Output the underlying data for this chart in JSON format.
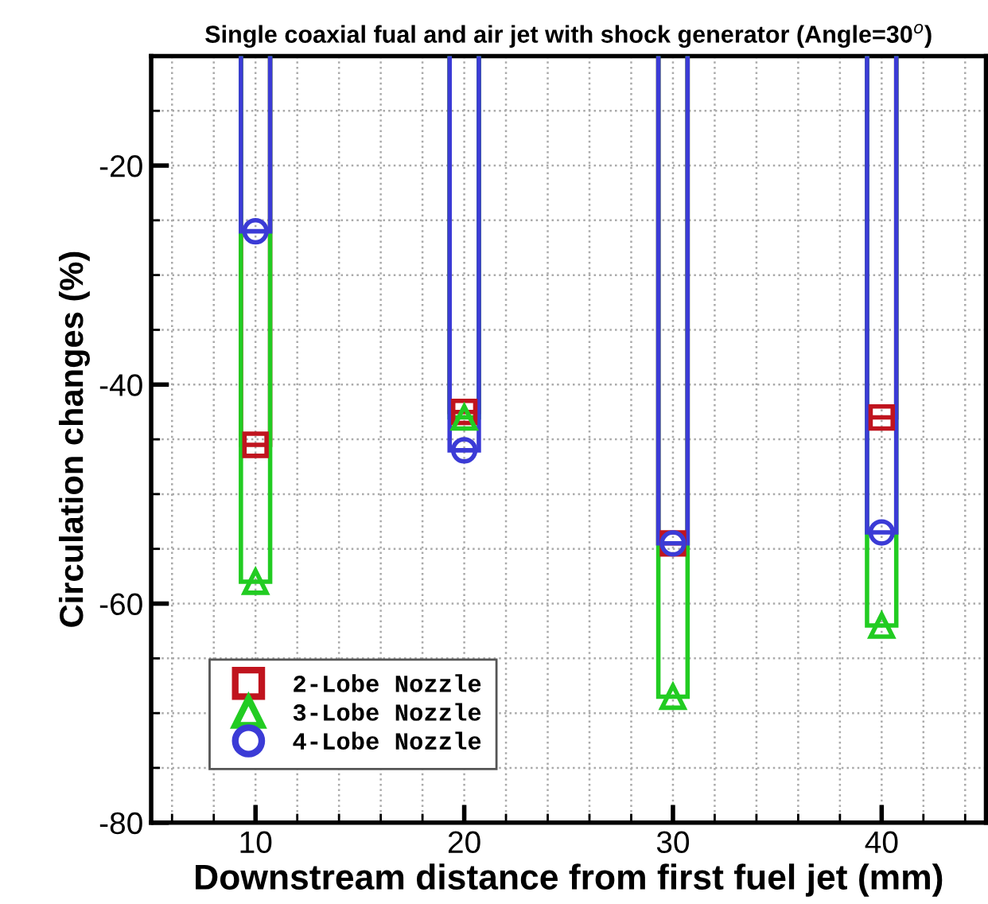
{
  "chart_data": {
    "type": "lollipop",
    "title": "Single coaxial fual and air jet with shock generator (Angle=30$^{o}$)",
    "xlabel": "Downstream distance from first fuel jet (mm)",
    "ylabel": "Circulation changes (%)",
    "x": [
      10,
      20,
      30,
      40
    ],
    "series": [
      {
        "name": "2-Lobe Nozzle",
        "color": "#c0141e",
        "marker": "square",
        "values": [
          -45.5,
          -42.5,
          -54.5,
          -43
        ]
      },
      {
        "name": "3-Lobe Nozzle",
        "color": "#22cc22",
        "marker": "triangle",
        "values": [
          -58,
          -43,
          -68.5,
          -62
        ]
      },
      {
        "name": "4-Lobe Nozzle",
        "color": "#3b3bd6",
        "marker": "circle",
        "values": [
          -26,
          -46,
          -54.5,
          -53.5
        ]
      }
    ],
    "xlim": [
      5,
      45
    ],
    "ylim": [
      -80,
      -10
    ],
    "xticks": [
      {
        "value": 6,
        "label": null
      },
      {
        "value": 8,
        "label": null
      },
      10,
      {
        "value": 12,
        "label": null
      },
      {
        "value": 14,
        "label": null
      },
      {
        "value": 16,
        "label": null
      },
      {
        "value": 18,
        "label": null
      },
      20,
      {
        "value": 22,
        "label": null
      },
      {
        "value": 24,
        "label": null
      },
      {
        "value": 26,
        "label": null
      },
      {
        "value": 28,
        "label": null
      },
      30,
      {
        "value": 32,
        "label": null
      },
      {
        "value": 34,
        "label": null
      },
      {
        "value": 36,
        "label": null
      },
      {
        "value": 38,
        "label": null
      },
      40,
      {
        "value": 42,
        "label": null
      },
      {
        "value": 44,
        "label": null
      }
    ],
    "yticks": [
      -80,
      {
        "value": -75,
        "label": null
      },
      {
        "value": -70,
        "label": null
      },
      {
        "value": -65,
        "label": null
      },
      -60,
      {
        "value": -55,
        "label": null
      },
      {
        "value": -50,
        "label": null
      },
      {
        "value": -45,
        "label": null
      },
      -40,
      {
        "value": -35,
        "label": null
      },
      {
        "value": -30,
        "label": null
      },
      {
        "value": -25,
        "label": null
      },
      -20,
      {
        "value": -15,
        "label": null
      }
    ],
    "grid": true,
    "legend": "bottom left"
  }
}
